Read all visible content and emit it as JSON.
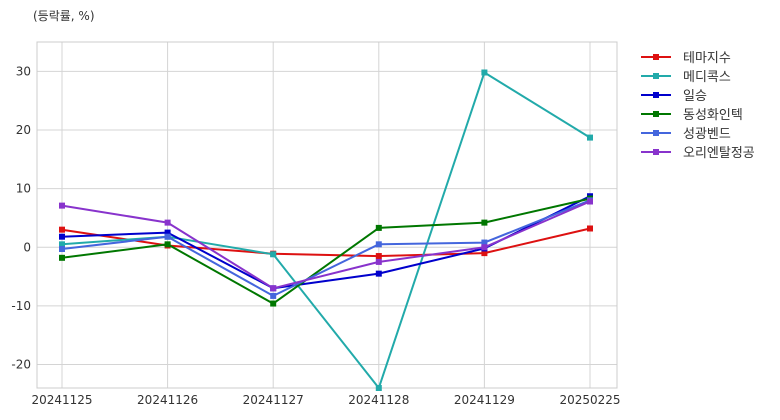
{
  "chart_data": {
    "type": "line",
    "unit_label": "(등락률, %)",
    "x": [
      "20241125",
      "20241126",
      "20241127",
      "20241128",
      "20241129",
      "20250225"
    ],
    "y_ticks": [
      30,
      20,
      10,
      0,
      -10,
      -20
    ],
    "ylim": [
      -24,
      35
    ],
    "grid": true,
    "legend_position": "right",
    "series": [
      {
        "name": "테마지수",
        "color": "#dd1111",
        "values": [
          3.0,
          0.3,
          -1.1,
          -1.5,
          -1.0,
          3.2
        ]
      },
      {
        "name": "메디콕스",
        "color": "#22aaaa",
        "values": [
          0.5,
          1.8,
          -1.2,
          -24.0,
          29.8,
          18.7
        ]
      },
      {
        "name": "일승",
        "color": "#0000cc",
        "values": [
          1.8,
          2.5,
          -7.0,
          -4.5,
          -0.2,
          8.7
        ]
      },
      {
        "name": "동성화인텍",
        "color": "#007700",
        "values": [
          -1.8,
          0.5,
          -9.6,
          3.3,
          4.2,
          8.3
        ]
      },
      {
        "name": "성광벤드",
        "color": "#4466dd",
        "values": [
          -0.3,
          1.8,
          -8.3,
          0.5,
          0.8,
          8.0
        ]
      },
      {
        "name": "오리엔탈정공",
        "color": "#8833cc",
        "values": [
          7.1,
          4.2,
          -7.0,
          -2.5,
          0.0,
          7.8
        ]
      }
    ]
  }
}
